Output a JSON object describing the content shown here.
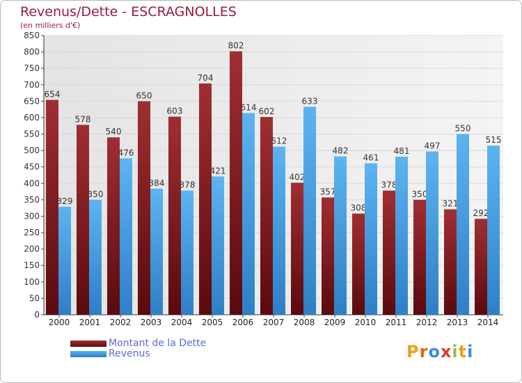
{
  "chart_data": {
    "type": "bar",
    "title": "Revenus/Dette - ESCRAGNOLLES",
    "subtitle": "(en milliers d'€)",
    "categories": [
      "2000",
      "2001",
      "2002",
      "2003",
      "2004",
      "2005",
      "2006",
      "2007",
      "2008",
      "2009",
      "2010",
      "2011",
      "2012",
      "2013",
      "2014"
    ],
    "series": [
      {
        "name": "Montant de la Dette",
        "color": "#8b1e22",
        "values": [
          654,
          578,
          540,
          650,
          603,
          704,
          802,
          602,
          402,
          357,
          308,
          378,
          350,
          321,
          292
        ]
      },
      {
        "name": "Revenus",
        "color": "#4fa8e6",
        "values": [
          329,
          350,
          476,
          384,
          378,
          421,
          614,
          512,
          633,
          482,
          461,
          481,
          497,
          550,
          515
        ]
      }
    ],
    "ylim": [
      0,
      850
    ],
    "ytick_step": 50,
    "grid": true,
    "legend_position": "bottom-left",
    "colors": {
      "title": "#9a1b3a",
      "grid": "#d8d8d8",
      "plot_background": "#eaeaea",
      "legend_text": "#5a6ad6"
    }
  },
  "branding": {
    "letters": [
      "P",
      "r",
      "o",
      "x",
      "i",
      "t",
      "i"
    ],
    "letter_colors": [
      "#f0a020",
      "#e8601c",
      "#3a8fd8",
      "#e23a2a",
      "#8bc34a",
      "#f0a020",
      "#3a8fd8"
    ]
  }
}
